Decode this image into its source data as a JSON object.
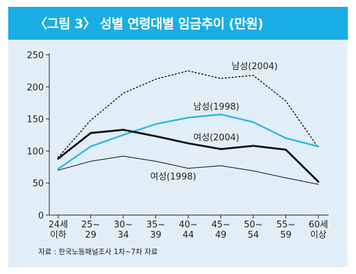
{
  "title": "〈그림 3〉 성별 연령대별 임금추이 (만원)",
  "source": "자료 : 한국노동패널조사 1차~7차 자료",
  "colors": {
    "title_bar": "#19aee3",
    "background": "#e2eef7",
    "male_2004": "#222222",
    "male_1998": "#29b6ea",
    "female_2004": "#111111",
    "female_1998": "#222222"
  },
  "chart_data": {
    "type": "line",
    "title": "〈그림 3〉 성별 연령대별 임금추이 (만원)",
    "xlabel": "",
    "ylabel": "",
    "ylim": [
      0,
      250
    ],
    "yticks": [
      0,
      50,
      100,
      150,
      200,
      250
    ],
    "grid": false,
    "categories": [
      [
        "24세",
        "이하"
      ],
      [
        "25~",
        "29"
      ],
      [
        "30~",
        "34"
      ],
      [
        "35~",
        "39"
      ],
      [
        "40~",
        "44"
      ],
      [
        "45~",
        "49"
      ],
      [
        "50~",
        "54"
      ],
      [
        "55~",
        "59"
      ],
      [
        "60세",
        "이상"
      ]
    ],
    "series": [
      {
        "name": "남성(2004)",
        "style": "dotted",
        "color": "#222222",
        "values": [
          90,
          148,
          190,
          212,
          225,
          213,
          218,
          178,
          105
        ]
      },
      {
        "name": "남성(1998)",
        "style": "solid-blue",
        "color": "#29b6ea",
        "values": [
          72,
          107,
          125,
          142,
          152,
          157,
          145,
          120,
          107
        ]
      },
      {
        "name": "여성(2004)",
        "style": "solid-thick",
        "color": "#111111",
        "values": [
          88,
          128,
          133,
          123,
          112,
          103,
          108,
          102,
          52
        ]
      },
      {
        "name": "여성(1998)",
        "style": "solid-thin",
        "color": "#222222",
        "values": [
          70,
          84,
          92,
          84,
          73,
          77,
          69,
          58,
          48
        ]
      }
    ]
  }
}
